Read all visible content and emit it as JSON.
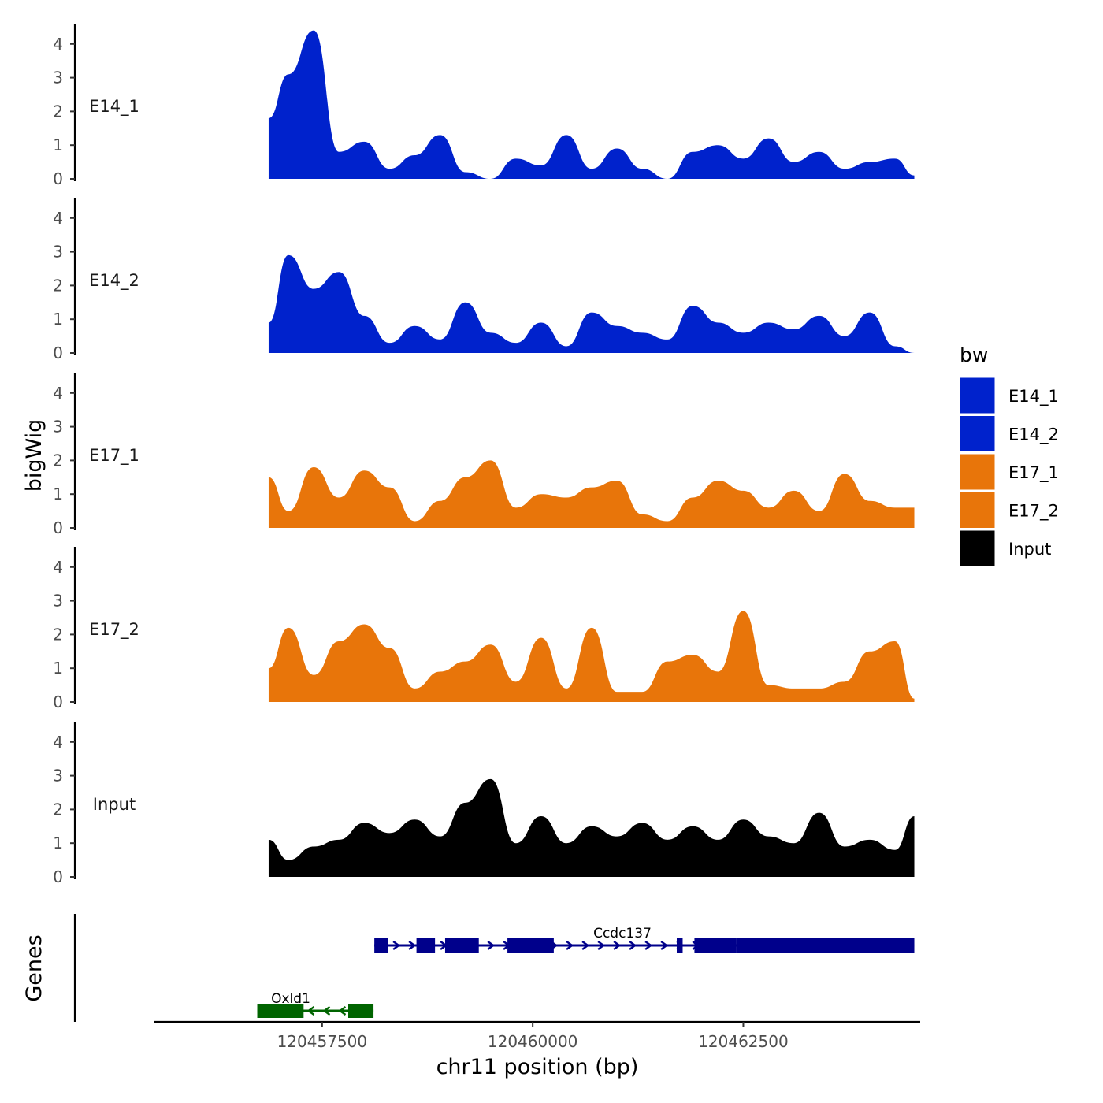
{
  "chart_data": {
    "type": "area",
    "title": "",
    "ylabel": "bigWig",
    "genes_label": "Genes",
    "xlabel": "chr11 position (bp)",
    "xlim": [
      120455500,
      120464600
    ],
    "ylim": [
      0,
      4.5
    ],
    "y_ticks": [
      0,
      1,
      2,
      3,
      4
    ],
    "x_ticks": [
      120457500,
      120460000,
      120462500
    ],
    "legend": {
      "title": "bw",
      "items": [
        {
          "label": "E14_1",
          "color": "#0022CC"
        },
        {
          "label": "E14_2",
          "color": "#0022CC"
        },
        {
          "label": "E17_1",
          "color": "#E8750A"
        },
        {
          "label": "E17_2",
          "color": "#E8750A"
        },
        {
          "label": "Input",
          "color": "#000000"
        }
      ]
    },
    "x": [
      120456865,
      120457100,
      120457400,
      120457700,
      120458000,
      120458300,
      120458600,
      120458900,
      120459200,
      120459500,
      120459800,
      120460100,
      120460400,
      120460700,
      120461000,
      120461300,
      120461600,
      120461900,
      120462200,
      120462500,
      120462800,
      120463100,
      120463400,
      120463700,
      120464000,
      120464300,
      120464530
    ],
    "series": [
      {
        "name": "E14_1",
        "color": "#0022CC",
        "values": [
          1.8,
          3.1,
          4.4,
          0.8,
          1.1,
          0.3,
          0.7,
          1.3,
          0.2,
          0.0,
          0.6,
          0.4,
          1.3,
          0.3,
          0.9,
          0.3,
          0.0,
          0.8,
          1.0,
          0.6,
          1.2,
          0.5,
          0.8,
          0.3,
          0.5,
          0.6,
          0.1
        ]
      },
      {
        "name": "E14_2",
        "color": "#0022CC",
        "values": [
          0.9,
          2.9,
          1.9,
          2.4,
          1.1,
          0.3,
          0.8,
          0.4,
          1.5,
          0.6,
          0.3,
          0.9,
          0.2,
          1.2,
          0.8,
          0.6,
          0.4,
          1.4,
          0.9,
          0.6,
          0.9,
          0.7,
          1.1,
          0.5,
          1.2,
          0.2,
          0.0
        ]
      },
      {
        "name": "E17_1",
        "color": "#E8750A",
        "values": [
          1.5,
          0.5,
          1.8,
          0.9,
          1.7,
          1.2,
          0.2,
          0.8,
          1.5,
          2.0,
          0.6,
          1.0,
          0.9,
          1.2,
          1.4,
          0.4,
          0.2,
          0.9,
          1.4,
          1.1,
          0.6,
          1.1,
          0.5,
          1.6,
          0.8,
          0.6,
          0.6
        ]
      },
      {
        "name": "E17_2",
        "color": "#E8750A",
        "values": [
          1.0,
          2.2,
          0.8,
          1.8,
          2.3,
          1.6,
          0.4,
          0.9,
          1.2,
          1.7,
          0.6,
          1.9,
          0.4,
          2.2,
          0.3,
          0.3,
          1.2,
          1.4,
          0.9,
          2.7,
          0.5,
          0.4,
          0.4,
          0.6,
          1.5,
          1.8,
          0.1
        ]
      },
      {
        "name": "Input",
        "color": "#000000",
        "values": [
          1.1,
          0.5,
          0.9,
          1.1,
          1.6,
          1.3,
          1.7,
          1.2,
          2.2,
          2.9,
          1.0,
          1.8,
          1.0,
          1.5,
          1.2,
          1.6,
          1.1,
          1.5,
          1.1,
          1.7,
          1.2,
          1.0,
          1.9,
          0.9,
          1.1,
          0.8,
          1.8
        ]
      }
    ],
    "genes": [
      {
        "name": "Ccdc137",
        "strand": "+",
        "color": "#00008B",
        "start": 120458120,
        "end": 120464530,
        "exons": [
          [
            120458120,
            120458280
          ],
          [
            120458620,
            120458840
          ],
          [
            120458960,
            120459360
          ],
          [
            120459700,
            120460250
          ],
          [
            120461710,
            120461780
          ],
          [
            120461920,
            120462420
          ],
          [
            120462420,
            120464530
          ]
        ]
      },
      {
        "name": "Oxld1",
        "strand": "-",
        "color": "#006400",
        "start": 120456730,
        "end": 120458110,
        "exons": [
          [
            120456730,
            120457280
          ],
          [
            120457810,
            120458110
          ]
        ]
      }
    ]
  }
}
